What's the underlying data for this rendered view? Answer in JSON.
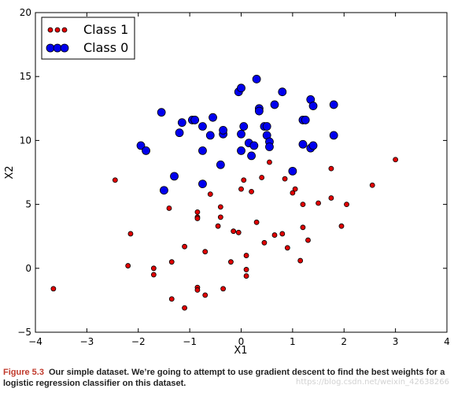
{
  "chart_data": {
    "type": "scatter",
    "xlabel": "X1",
    "ylabel": "X2",
    "xlim": [
      -4,
      4
    ],
    "ylim": [
      -5,
      20
    ],
    "xticks": [
      -4,
      -3,
      -2,
      -1,
      0,
      1,
      2,
      3,
      4
    ],
    "yticks": [
      -5,
      0,
      5,
      10,
      15,
      20
    ],
    "legend_position": "top-left",
    "series": [
      {
        "name": "Class 1",
        "color": "#e00000",
        "points": [
          [
            -3.65,
            -1.6
          ],
          [
            -2.45,
            6.9
          ],
          [
            -2.15,
            2.7
          ],
          [
            -2.2,
            0.2
          ],
          [
            -1.7,
            -0.5
          ],
          [
            -1.7,
            0.0
          ],
          [
            -1.4,
            4.7
          ],
          [
            -1.35,
            0.5
          ],
          [
            -1.35,
            -2.4
          ],
          [
            -1.1,
            1.7
          ],
          [
            -1.1,
            -3.1
          ],
          [
            -0.85,
            4.4
          ],
          [
            -0.85,
            4.0
          ],
          [
            -0.85,
            3.9
          ],
          [
            -0.85,
            -1.5
          ],
          [
            -0.85,
            -1.7
          ],
          [
            -0.7,
            1.3
          ],
          [
            -0.7,
            -2.1
          ],
          [
            -0.6,
            5.8
          ],
          [
            -0.45,
            3.3
          ],
          [
            -0.4,
            4.0
          ],
          [
            -0.4,
            4.8
          ],
          [
            -0.35,
            -1.6
          ],
          [
            -0.2,
            0.5
          ],
          [
            -0.15,
            2.9
          ],
          [
            -0.05,
            2.8
          ],
          [
            0.0,
            6.2
          ],
          [
            0.05,
            6.9
          ],
          [
            0.1,
            -0.1
          ],
          [
            0.1,
            -0.6
          ],
          [
            0.1,
            1.0
          ],
          [
            0.2,
            6.0
          ],
          [
            0.3,
            3.6
          ],
          [
            0.4,
            7.1
          ],
          [
            0.45,
            2.0
          ],
          [
            0.55,
            8.3
          ],
          [
            0.65,
            2.6
          ],
          [
            0.8,
            2.7
          ],
          [
            0.85,
            7.0
          ],
          [
            0.9,
            1.6
          ],
          [
            1.0,
            5.9
          ],
          [
            1.05,
            6.2
          ],
          [
            1.15,
            0.6
          ],
          [
            1.2,
            3.2
          ],
          [
            1.2,
            5.0
          ],
          [
            1.3,
            2.2
          ],
          [
            1.5,
            5.1
          ],
          [
            1.75,
            5.5
          ],
          [
            1.75,
            7.8
          ],
          [
            1.95,
            3.3
          ],
          [
            2.05,
            5.0
          ],
          [
            2.55,
            6.5
          ],
          [
            3.0,
            8.5
          ]
        ]
      },
      {
        "name": "Class 0",
        "color": "#0000ee",
        "points": [
          [
            -1.95,
            9.6
          ],
          [
            -1.85,
            9.2
          ],
          [
            -1.55,
            12.2
          ],
          [
            -1.5,
            6.1
          ],
          [
            -1.3,
            7.2
          ],
          [
            -1.2,
            10.6
          ],
          [
            -1.15,
            11.4
          ],
          [
            -0.95,
            11.6
          ],
          [
            -0.9,
            11.6
          ],
          [
            -0.75,
            11.1
          ],
          [
            -0.75,
            9.2
          ],
          [
            -0.75,
            6.6
          ],
          [
            -0.6,
            10.4
          ],
          [
            -0.55,
            11.8
          ],
          [
            -0.4,
            8.1
          ],
          [
            -0.35,
            10.5
          ],
          [
            -0.35,
            10.8
          ],
          [
            -0.05,
            13.8
          ],
          [
            0.0,
            14.1
          ],
          [
            0.0,
            10.5
          ],
          [
            0.0,
            9.2
          ],
          [
            0.05,
            11.1
          ],
          [
            0.15,
            9.8
          ],
          [
            0.2,
            8.8
          ],
          [
            0.25,
            9.6
          ],
          [
            0.3,
            14.8
          ],
          [
            0.35,
            12.5
          ],
          [
            0.35,
            12.3
          ],
          [
            0.45,
            11.1
          ],
          [
            0.5,
            11.1
          ],
          [
            0.5,
            10.4
          ],
          [
            0.55,
            9.9
          ],
          [
            0.55,
            9.5
          ],
          [
            0.65,
            12.8
          ],
          [
            0.8,
            13.8
          ],
          [
            1.0,
            7.6
          ],
          [
            1.2,
            11.6
          ],
          [
            1.2,
            9.7
          ],
          [
            1.25,
            11.6
          ],
          [
            1.35,
            13.2
          ],
          [
            1.35,
            9.4
          ],
          [
            1.4,
            12.7
          ],
          [
            1.4,
            9.6
          ],
          [
            1.8,
            12.8
          ],
          [
            1.8,
            10.4
          ]
        ]
      }
    ]
  },
  "caption": {
    "figure_label": "Figure 5.3",
    "text": "Our simple dataset. We’re going to attempt to use gradient descent to find the best weights for a logistic regression classifier on this dataset."
  },
  "watermark": "https://blog.csdn.net/weixin_42638266"
}
